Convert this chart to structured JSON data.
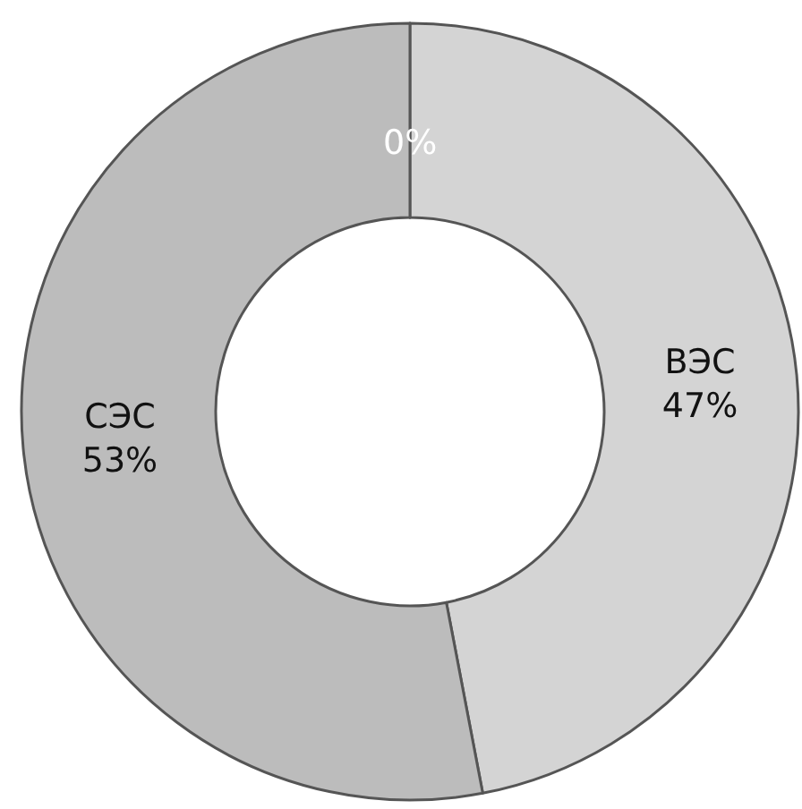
{
  "chart_data": {
    "type": "donut",
    "categories": [
      null,
      "ВЭС",
      "СЭС"
    ],
    "values": [
      0,
      47,
      53
    ],
    "colors": [
      "#c4c4c4",
      "#d4d4d4",
      "#bcbcbc"
    ],
    "value_labels": [
      "0%",
      "47%",
      "53%"
    ],
    "legend": false
  }
}
